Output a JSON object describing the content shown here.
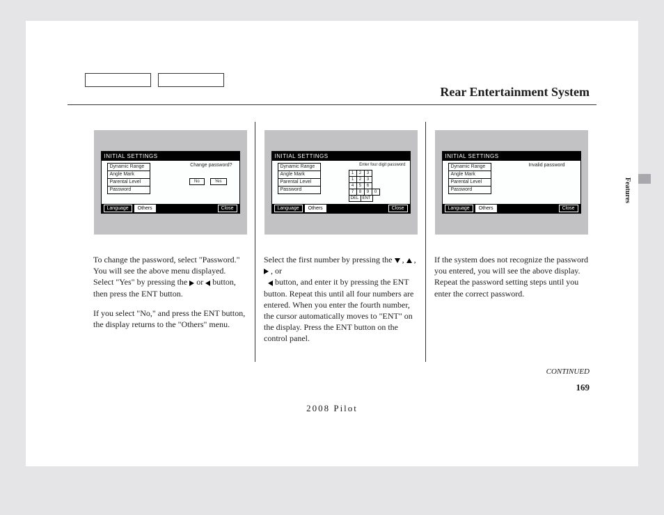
{
  "header": {
    "title": "Rear Entertainment System"
  },
  "sideTab": "Features",
  "screens": {
    "headerLabel": "INITIAL SETTINGS",
    "menuItems": [
      "Dynamic Range",
      "Angle Mark",
      "Parental Level",
      "Password"
    ],
    "footerTabs": {
      "language": "Language",
      "others": "Others",
      "close": "Close"
    },
    "s1": {
      "prompt": "Change password?",
      "no": "No",
      "yes": "Yes"
    },
    "s2": {
      "prompt": "Enter four digit password",
      "rows": [
        [
          "1",
          "2",
          "3"
        ],
        [
          "1",
          "2",
          "3"
        ],
        [
          "4",
          "5",
          "6"
        ],
        [
          "7",
          "8",
          "9",
          "0"
        ]
      ],
      "del": "DEL",
      "ent": "ENT"
    },
    "s3": {
      "prompt": "Invalid password"
    }
  },
  "text": {
    "col1p1_a": "To change the password, select \"Password.\" You will see the above menu displayed. Select \"Yes\" by pressing the ",
    "col1p1_b": " or ",
    "col1p1_c": " button, then press the ENT button.",
    "col1p2": "If you select \"No,\" and press the ENT button, the display returns to the \"Others\" menu.",
    "col2p1_a": "Select the first number by pressing the ",
    "col2p1_b": " , ",
    "col2p1_c": " , ",
    "col2p1_d": " , or ",
    "col2p1_e": " button, and enter it by pressing the ENT button. Repeat this until all four numbers are entered. When you enter the fourth number, the cursor automatically moves to \"ENT\" on the display. Press the ENT button on the control panel.",
    "col3p1": "If the system does not recognize the password you entered, you will see the above display. Repeat the password setting steps until you enter the correct password."
  },
  "continued": "CONTINUED",
  "pageNumber": "169",
  "footerTitle": "2008  Pilot",
  "colors": {
    "pageBg": "#ffffff",
    "bodyBg": "#e5e5e7",
    "screenOuter": "#c2c2c5",
    "screenInner": "#fdfefe",
    "text": "#1a1a1a"
  }
}
